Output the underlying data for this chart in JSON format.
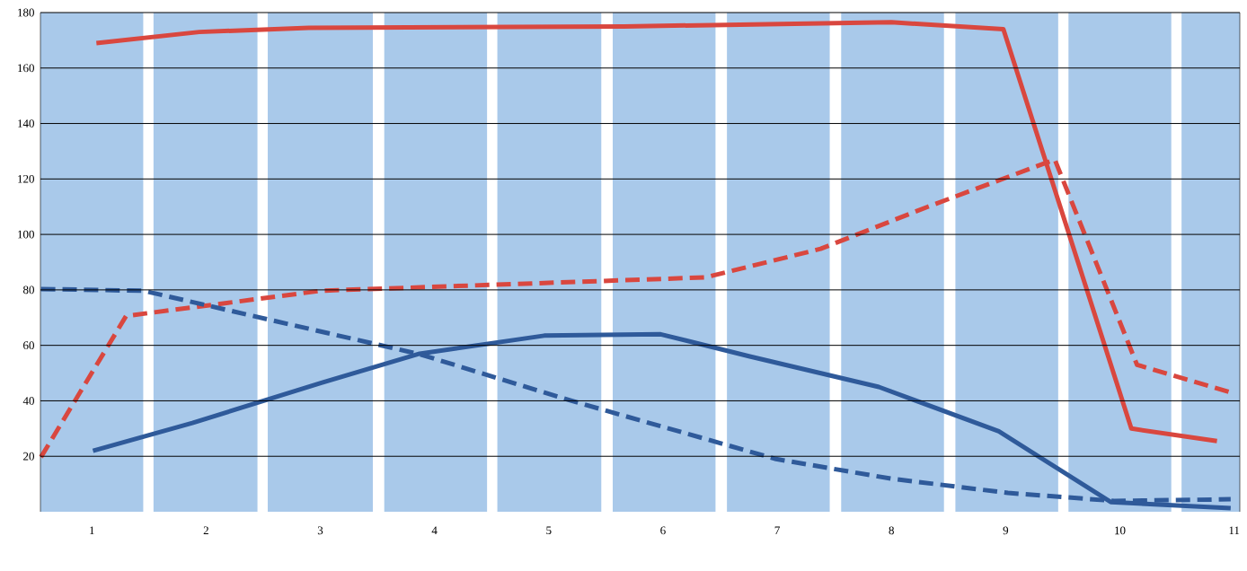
{
  "chart_data": {
    "type": "line",
    "xlim": [
      0.55,
      11.05
    ],
    "ylim": [
      0,
      180
    ],
    "xticks": [
      1,
      2,
      3,
      4,
      5,
      6,
      7,
      8,
      9,
      10,
      11
    ],
    "yticks": [
      20,
      40,
      60,
      80,
      100,
      120,
      140,
      160,
      180
    ],
    "grid": "y",
    "marker": "none",
    "series": [
      {
        "color": "#d9473f",
        "line_style": "solid",
        "x": [
          1.04,
          1.94,
          2.9,
          5.66,
          8.0,
          8.98,
          10.1,
          10.85
        ],
        "values": [
          169,
          173,
          174.5,
          175,
          176.5,
          174,
          30,
          25.5
        ]
      },
      {
        "color": "#d9473f",
        "line_style": "dashed",
        "x": [
          0.555,
          1.3,
          3.01,
          6.37,
          7.38,
          8.32,
          9.43,
          10.15,
          10.97
        ],
        "values": [
          19.7,
          70.6,
          79.7,
          84.5,
          94.8,
          110,
          127,
          53,
          43
        ]
      },
      {
        "color": "#2f5a9a",
        "line_style": "solid",
        "x": [
          1.01,
          1.88,
          3.01,
          3.87,
          4.96,
          5.98,
          6.76,
          7.89,
          8.94,
          9.92,
          10.97
        ],
        "values": [
          22,
          32,
          46.5,
          57,
          63.5,
          64,
          56,
          45,
          29,
          3.5,
          1.3
        ]
      },
      {
        "color": "#2f5a9a",
        "line_style": "dashed",
        "x": [
          0.555,
          1.45,
          3.87,
          5.2,
          6.99,
          8.0,
          9.02,
          9.95,
          10.97
        ],
        "values": [
          80.3,
          79.7,
          56.8,
          40,
          19,
          11.9,
          6.8,
          3.9,
          4.5
        ]
      }
    ],
    "bands": [
      {
        "axis": "x",
        "from": 0.55,
        "to": 1.45,
        "color": "#a9c9ea"
      },
      {
        "axis": "x",
        "from": 1.54,
        "to": 2.45,
        "color": "#a9c9ea"
      },
      {
        "axis": "x",
        "from": 2.54,
        "to": 3.46,
        "color": "#a9c9ea"
      },
      {
        "axis": "x",
        "from": 3.56,
        "to": 4.46,
        "color": "#a9c9ea"
      },
      {
        "axis": "x",
        "from": 4.55,
        "to": 5.46,
        "color": "#a9c9ea"
      },
      {
        "axis": "x",
        "from": 5.56,
        "to": 6.46,
        "color": "#a9c9ea"
      },
      {
        "axis": "x",
        "from": 6.56,
        "to": 7.46,
        "color": "#a9c9ea"
      },
      {
        "axis": "x",
        "from": 7.56,
        "to": 8.46,
        "color": "#a9c9ea"
      },
      {
        "axis": "x",
        "from": 8.56,
        "to": 9.46,
        "color": "#a9c9ea"
      },
      {
        "axis": "x",
        "from": 9.55,
        "to": 10.45,
        "color": "#a9c9ea"
      },
      {
        "axis": "x",
        "from": 10.54,
        "to": 11.05,
        "color": "#a9c9ea"
      }
    ]
  }
}
